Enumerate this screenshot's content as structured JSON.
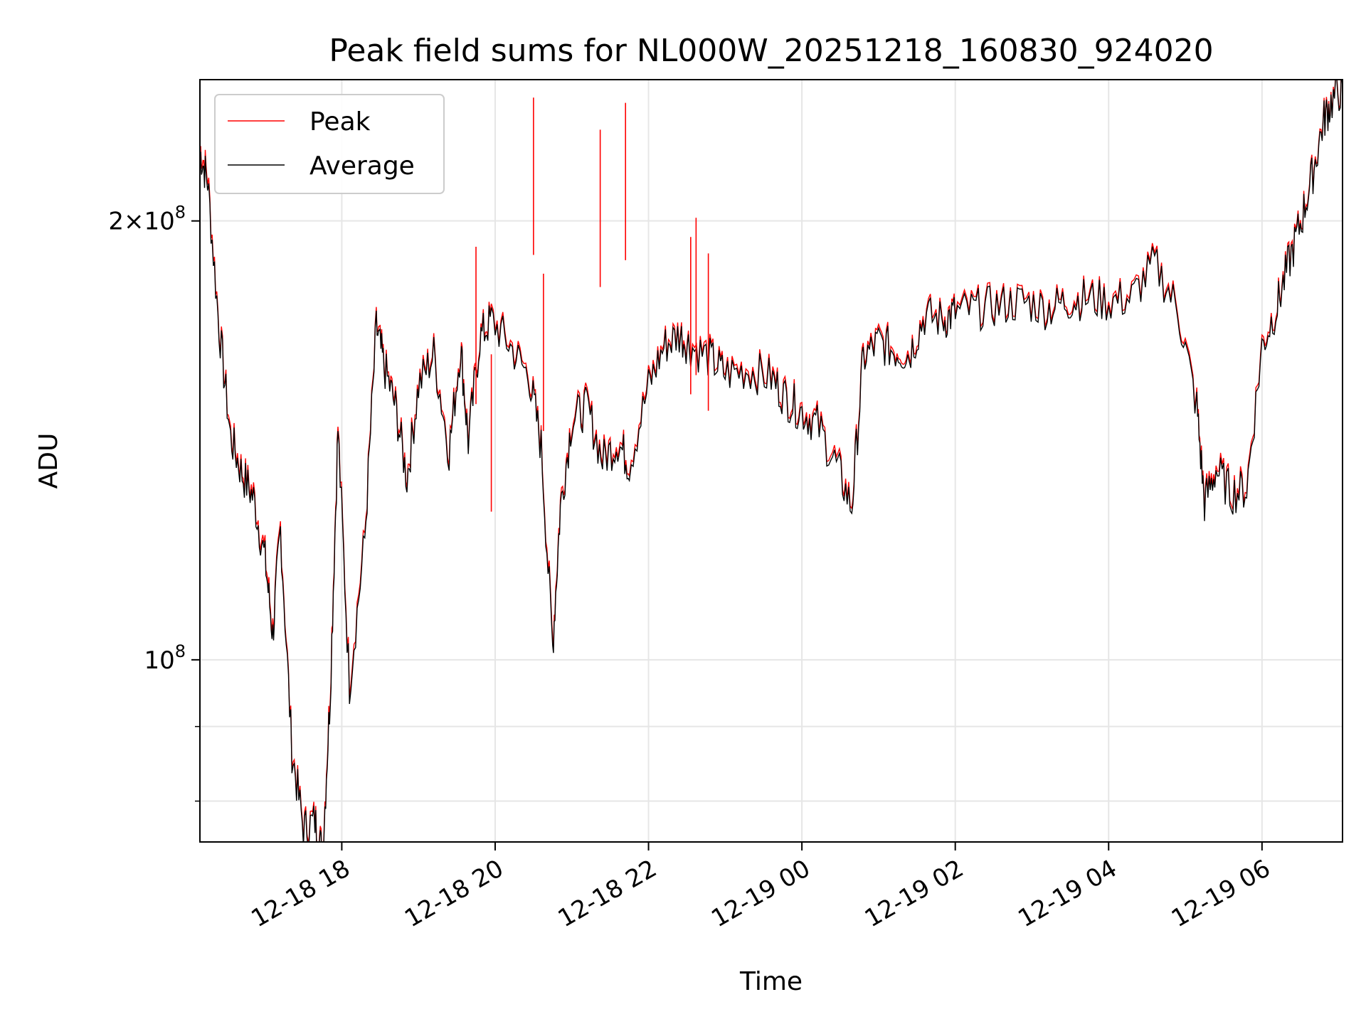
{
  "chart_data": {
    "type": "line",
    "title": "Peak field sums for NL000W_20251218_160830_924020",
    "xlabel": "Time",
    "ylabel": "ADU",
    "yscale": "log",
    "x_unit": "hours since 2025-12-18 00:00",
    "xlim": [
      16.15,
      31.05
    ],
    "ylim": [
      75000000,
      250000000
    ],
    "x_ticks": [
      {
        "value": 18,
        "label": "12-18 18"
      },
      {
        "value": 20,
        "label": "12-18 20"
      },
      {
        "value": 22,
        "label": "12-18 22"
      },
      {
        "value": 24,
        "label": "12-19 00"
      },
      {
        "value": 26,
        "label": "12-19 02"
      },
      {
        "value": 28,
        "label": "12-19 04"
      },
      {
        "value": 30,
        "label": "12-19 06"
      }
    ],
    "y_ticks": [
      {
        "value": 100000000,
        "base": "10",
        "exp": "8",
        "prefix": ""
      },
      {
        "value": 200000000,
        "base": "10",
        "exp": "8",
        "prefix": "2×"
      }
    ],
    "y_minor_ticks": [
      80000000,
      90000000
    ],
    "grid": true,
    "legend_position": "upper-left",
    "series": [
      {
        "name": "Peak",
        "color": "#ff0000",
        "x": [
          16.15,
          16.25,
          16.4,
          16.55,
          16.7,
          16.85,
          17.0,
          17.1,
          17.2,
          17.35,
          17.5,
          17.65,
          17.75,
          17.85,
          17.95,
          18.1,
          18.3,
          18.45,
          18.55,
          18.7,
          18.85,
          19.0,
          19.2,
          19.4,
          19.55,
          19.65,
          19.8,
          19.95,
          20.2,
          20.45,
          20.6,
          20.75,
          20.85,
          21.0,
          21.2,
          21.4,
          21.6,
          21.75,
          22.0,
          22.2,
          22.4,
          22.55,
          22.8,
          23.0,
          23.3,
          23.6,
          23.8,
          24.0,
          24.2,
          24.45,
          24.65,
          24.8,
          25.0,
          25.2,
          25.4,
          25.6,
          25.85,
          26.0,
          26.3,
          26.6,
          26.9,
          27.2,
          27.45,
          27.7,
          28.0,
          28.3,
          28.6,
          28.9,
          29.15,
          29.25,
          29.4,
          29.6,
          29.8,
          30.0,
          30.2,
          30.35,
          30.5,
          30.65,
          30.8,
          30.9,
          31.05
        ],
        "y": [
          225000000,
          215000000,
          170000000,
          143000000,
          135000000,
          130000000,
          118000000,
          105000000,
          124000000,
          87000000,
          77000000,
          78000000,
          74000000,
          96000000,
          145000000,
          97000000,
          122000000,
          170000000,
          160000000,
          150000000,
          134000000,
          155000000,
          163000000,
          140000000,
          165000000,
          142000000,
          167000000,
          172000000,
          165000000,
          157000000,
          141000000,
          103000000,
          128000000,
          147000000,
          150000000,
          138000000,
          142000000,
          137000000,
          155000000,
          165000000,
          168000000,
          165000000,
          162000000,
          158000000,
          159000000,
          157000000,
          152000000,
          149000000,
          146000000,
          137000000,
          128000000,
          162000000,
          166000000,
          164000000,
          163000000,
          173000000,
          172000000,
          174000000,
          175000000,
          176000000,
          177000000,
          175000000,
          177000000,
          178000000,
          177000000,
          178000000,
          188000000,
          175000000,
          150000000,
          129000000,
          136000000,
          131000000,
          132000000,
          165000000,
          176000000,
          188000000,
          200000000,
          215000000,
          235000000,
          242000000,
          248000000
        ]
      },
      {
        "name": "Average",
        "color": "#000000",
        "x": [
          16.15,
          16.25,
          16.4,
          16.55,
          16.7,
          16.85,
          17.0,
          17.1,
          17.2,
          17.35,
          17.5,
          17.65,
          17.75,
          17.85,
          17.95,
          18.1,
          18.3,
          18.45,
          18.55,
          18.7,
          18.85,
          19.0,
          19.2,
          19.4,
          19.55,
          19.65,
          19.8,
          19.95,
          20.2,
          20.45,
          20.6,
          20.75,
          20.85,
          21.0,
          21.2,
          21.4,
          21.6,
          21.75,
          22.0,
          22.2,
          22.4,
          22.55,
          22.8,
          23.0,
          23.3,
          23.6,
          23.8,
          24.0,
          24.2,
          24.45,
          24.65,
          24.8,
          25.0,
          25.2,
          25.4,
          25.6,
          25.85,
          26.0,
          26.3,
          26.6,
          26.9,
          27.2,
          27.45,
          27.7,
          28.0,
          28.3,
          28.6,
          28.9,
          29.15,
          29.25,
          29.4,
          29.6,
          29.8,
          30.0,
          30.2,
          30.35,
          30.5,
          30.65,
          30.8,
          30.9,
          31.05
        ],
        "y": [
          223000000,
          213000000,
          169000000,
          142000000,
          134000000,
          129000000,
          117000000,
          104000000,
          123000000,
          86500000,
          76500000,
          77500000,
          73500000,
          95000000,
          144000000,
          96000000,
          121000000,
          169000000,
          159000000,
          149000000,
          133000000,
          154000000,
          162000000,
          139000000,
          164000000,
          141000000,
          166000000,
          171000000,
          164000000,
          156000000,
          140000000,
          102000000,
          127000000,
          146000000,
          149000000,
          137000000,
          141000000,
          136000000,
          154000000,
          164000000,
          167000000,
          164000000,
          161000000,
          157000000,
          158000000,
          156000000,
          151000000,
          148000000,
          145000000,
          136000000,
          127000000,
          161000000,
          165000000,
          163000000,
          162000000,
          172000000,
          171000000,
          173000000,
          174000000,
          175000000,
          176000000,
          174000000,
          176000000,
          177000000,
          176000000,
          177000000,
          187000000,
          174000000,
          149000000,
          128000000,
          135000000,
          130000000,
          131000000,
          164000000,
          175000000,
          187000000,
          199000000,
          214000000,
          234000000,
          241000000,
          247000000
        ]
      }
    ],
    "spikes": {
      "series": "Peak",
      "x": [
        19.75,
        19.95,
        20.5,
        20.63,
        21.37,
        21.7,
        22.55,
        22.62,
        22.78
      ],
      "y": [
        192000000,
        162000000,
        243000000,
        184000000,
        231000000,
        241000000,
        195000000,
        201000000,
        190000000
      ]
    }
  }
}
